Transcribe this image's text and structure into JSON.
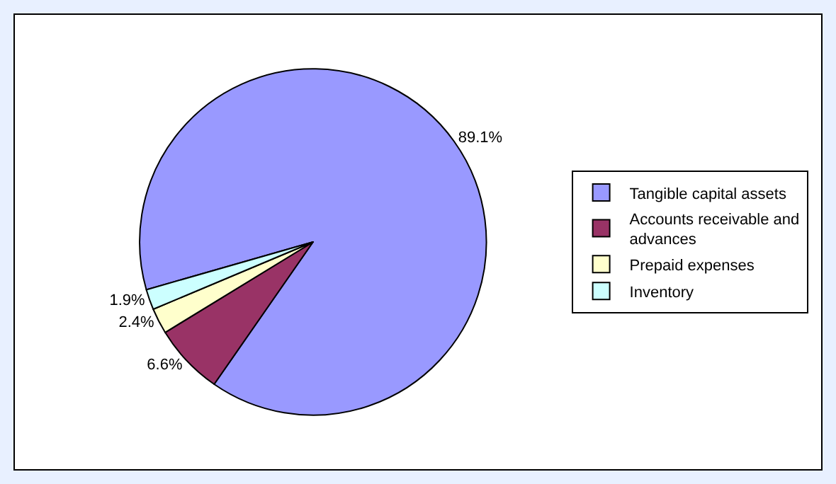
{
  "chart_data": {
    "type": "pie",
    "categories": [
      "Tangible capital assets",
      "Accounts receivable and\nadvances",
      "Prepaid expenses",
      "Inventory"
    ],
    "values": [
      89.1,
      6.6,
      2.4,
      1.9
    ],
    "colors": [
      "#9999ff",
      "#993366",
      "#ffffcc",
      "#ccffff"
    ],
    "value_labels": [
      "89.1%",
      "6.6%",
      "2.4%",
      "1.9%"
    ],
    "legend": "right"
  }
}
